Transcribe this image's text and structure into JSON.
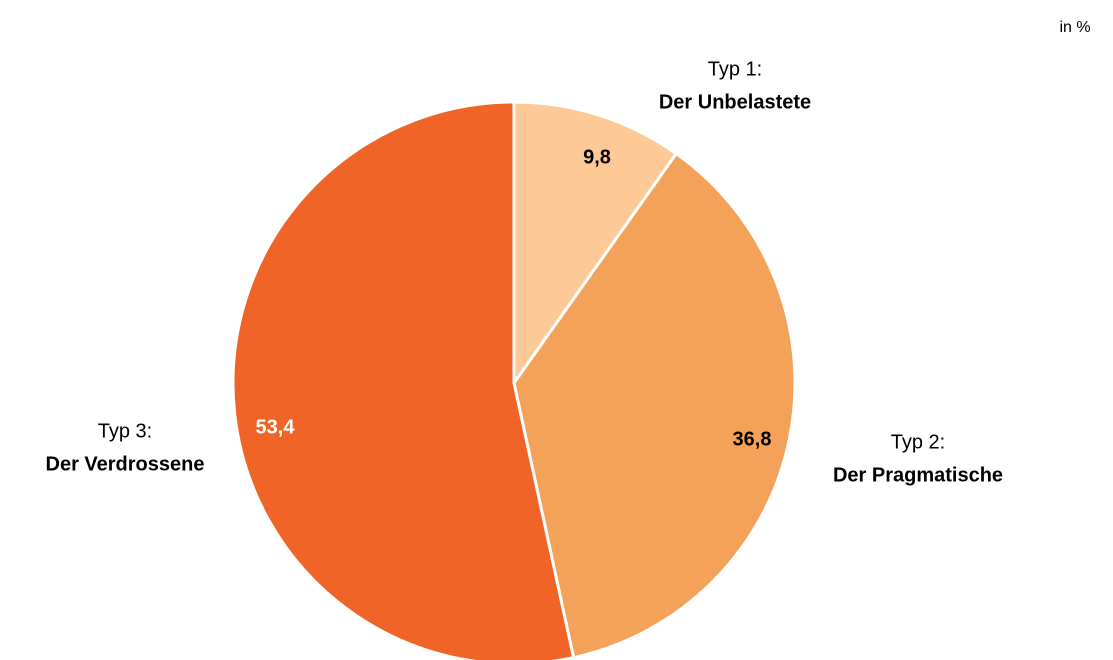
{
  "chart_data": {
    "type": "pie",
    "unit_note": "in %",
    "category_types": [
      "Typ 1:",
      "Typ 2:",
      "Typ 3:"
    ],
    "categories": [
      "Der Unbelastete",
      "Der Pragmatische",
      "Der Verdrossene"
    ],
    "values": [
      9.8,
      36.8,
      53.4
    ],
    "value_labels": [
      "9,8",
      "36,8",
      "53,4"
    ],
    "colors": [
      "#fdc997",
      "#f4a259",
      "#f06527"
    ],
    "value_label_colors": [
      "#000000",
      "#000000",
      "#ffffff"
    ]
  }
}
